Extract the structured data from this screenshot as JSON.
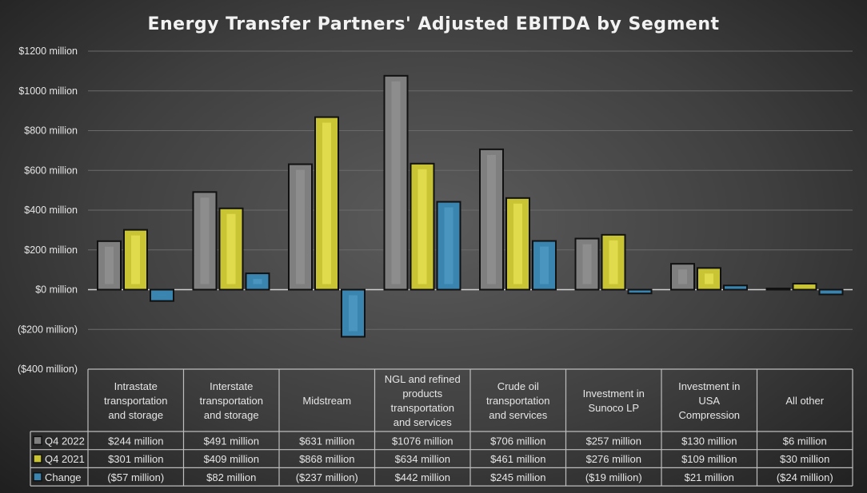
{
  "chart_data": {
    "type": "bar",
    "title": "Energy Transfer Partners' Adjusted EBITDA by Segment",
    "xlabel": "",
    "ylabel": "",
    "ylim": [
      -400,
      1200
    ],
    "yticks": [
      -400,
      -200,
      0,
      200,
      400,
      600,
      800,
      1000,
      1200
    ],
    "ytick_labels": [
      "($400 million)",
      "($200 million)",
      "$0 million",
      "$200 million",
      "$400 million",
      "$600 million",
      "$800 million",
      "$1000 million",
      "$1200 million"
    ],
    "grid": true,
    "legend": "data-table",
    "categories": [
      [
        "Intrastate",
        "transportation",
        "and storage"
      ],
      [
        "Interstate",
        "transportation",
        "and storage"
      ],
      [
        "Midstream"
      ],
      [
        "NGL and refined",
        "products",
        "transportation",
        "and services"
      ],
      [
        "Crude oil",
        "transportation",
        "and services"
      ],
      [
        "Investment in",
        "Sunoco LP"
      ],
      [
        "Investment in",
        "USA",
        "Compression"
      ],
      [
        "All other"
      ]
    ],
    "series": [
      {
        "name": "Q4 2022",
        "color": "#7f7f7f",
        "inner": "#8d8d8d",
        "values": [
          244,
          491,
          631,
          1076,
          706,
          257,
          130,
          6
        ],
        "labels": [
          "$244 million",
          "$491 million",
          "$631 million",
          "$1076 million",
          "$706 million",
          "$257 million",
          "$130 million",
          "$6 million"
        ]
      },
      {
        "name": "Q4 2021",
        "color": "#c9c434",
        "inner": "#e0db4c",
        "values": [
          301,
          409,
          868,
          634,
          461,
          276,
          109,
          30
        ],
        "labels": [
          "$301 million",
          "$409 million",
          "$868 million",
          "$634 million",
          "$461 million",
          "$276 million",
          "$109 million",
          "$30 million"
        ]
      },
      {
        "name": "Change",
        "color": "#3a84b0",
        "inner": "#4a95c0",
        "values": [
          -57,
          82,
          -237,
          442,
          245,
          -19,
          21,
          -24
        ],
        "labels": [
          "($57 million)",
          "$82 million",
          "($237 million)",
          "$442 million",
          "$245 million",
          "($19 million)",
          "$21 million",
          "($24 million)"
        ]
      }
    ]
  }
}
